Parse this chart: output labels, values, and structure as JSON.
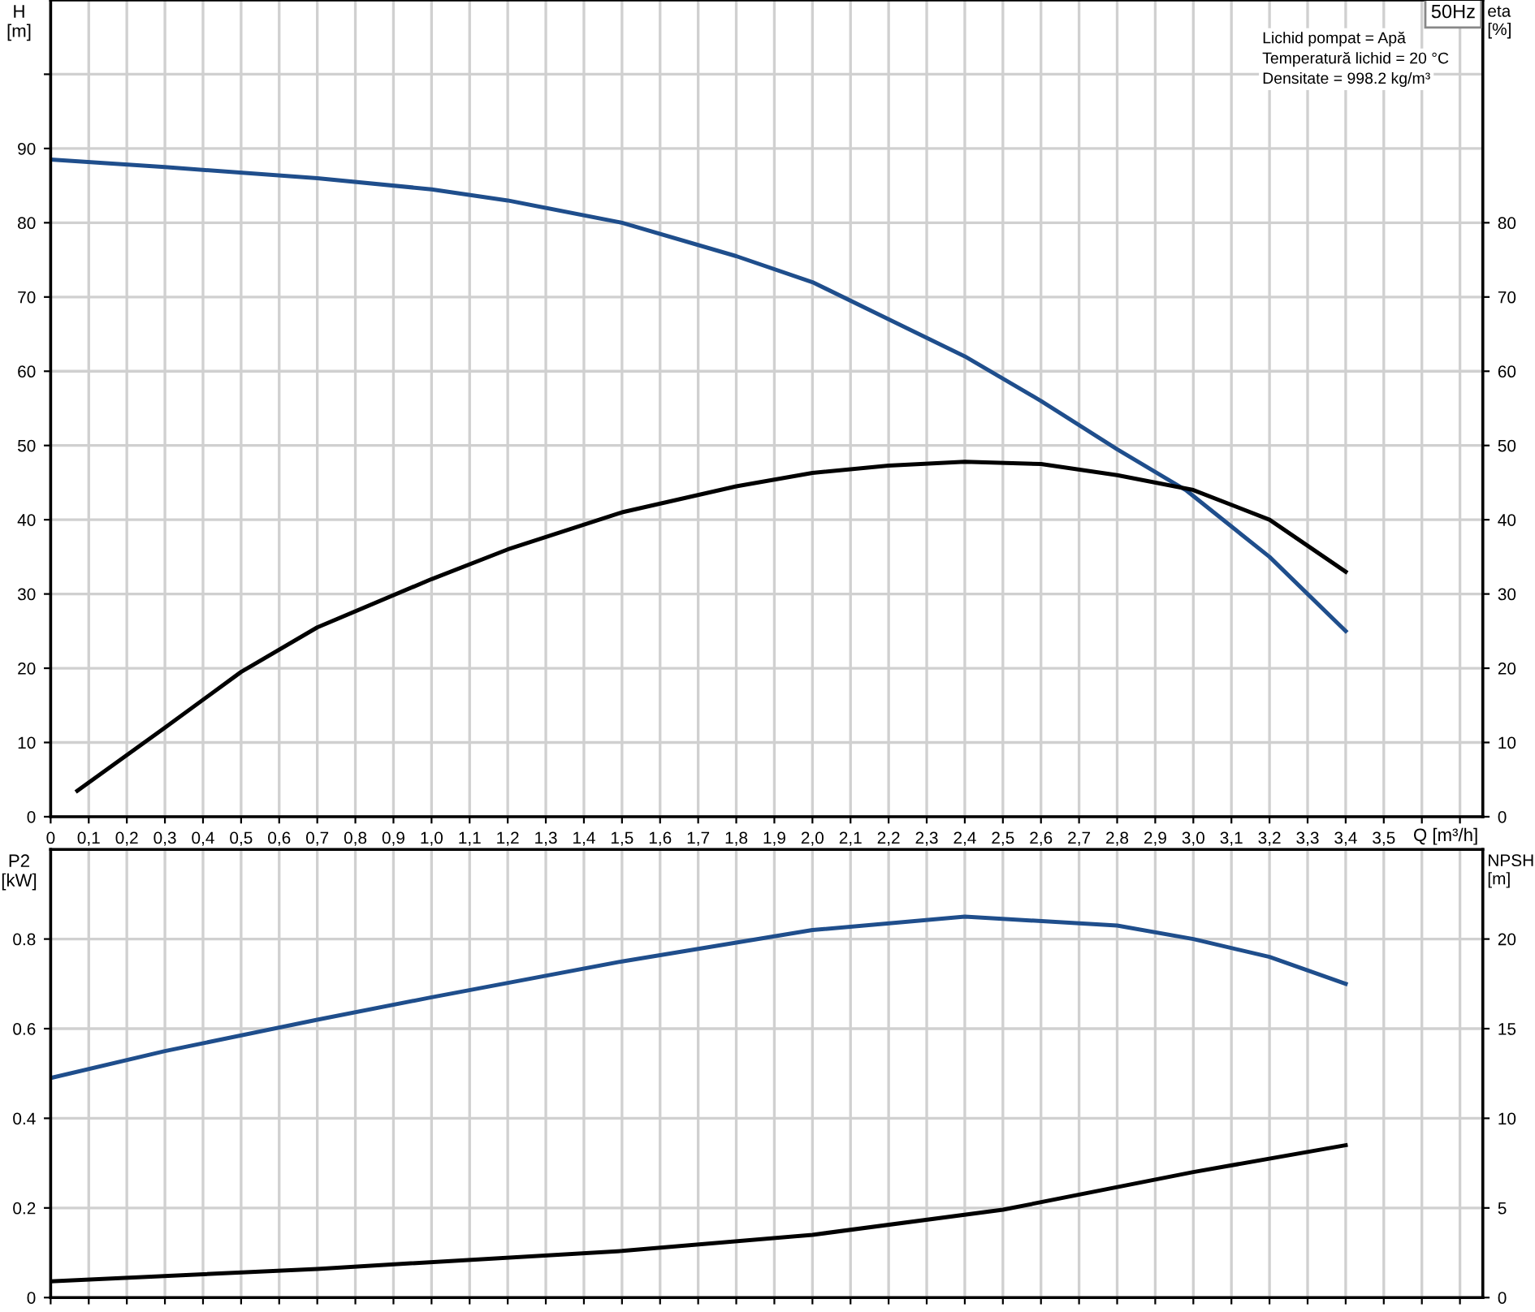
{
  "chart_data": [
    {
      "type": "line",
      "title": "50Hz",
      "xlabel": "Q [m³/h]",
      "ylabel": "H\n[m]",
      "y2label": "eta\n[%]",
      "xlim": [
        0,
        3.76
      ],
      "xticks": [
        {
          "value": 0,
          "label": "0"
        },
        {
          "value": 0.1,
          "label": "0,1"
        },
        {
          "value": 0.2,
          "label": "0,2"
        },
        {
          "value": 0.3,
          "label": "0,3"
        },
        {
          "value": 0.4,
          "label": "0,4"
        },
        {
          "value": 0.5,
          "label": "0,5"
        },
        {
          "value": 0.6,
          "label": "0,6"
        },
        {
          "value": 0.7,
          "label": "0,7"
        },
        {
          "value": 0.8,
          "label": "0,8"
        },
        {
          "value": 0.9,
          "label": "0,9"
        },
        {
          "value": 1.0,
          "label": "1,0"
        },
        {
          "value": 1.1,
          "label": "1,1"
        },
        {
          "value": 1.2,
          "label": "1,2"
        },
        {
          "value": 1.3,
          "label": "1,3"
        },
        {
          "value": 1.4,
          "label": "1,4"
        },
        {
          "value": 1.5,
          "label": "1,5"
        },
        {
          "value": 1.6,
          "label": "1,6"
        },
        {
          "value": 1.7,
          "label": "1,7"
        },
        {
          "value": 1.8,
          "label": "1,8"
        },
        {
          "value": 1.9,
          "label": "1,9"
        },
        {
          "value": 2.0,
          "label": "2,0"
        },
        {
          "value": 2.1,
          "label": "2,1"
        },
        {
          "value": 2.2,
          "label": "2,2"
        },
        {
          "value": 2.3,
          "label": "2,3"
        },
        {
          "value": 2.4,
          "label": "2,4"
        },
        {
          "value": 2.5,
          "label": "2,5"
        },
        {
          "value": 2.6,
          "label": "2,6"
        },
        {
          "value": 2.7,
          "label": "2,7"
        },
        {
          "value": 2.8,
          "label": "2,8"
        },
        {
          "value": 2.9,
          "label": "2,9"
        },
        {
          "value": 3.0,
          "label": "3,0"
        },
        {
          "value": 3.1,
          "label": "3,1"
        },
        {
          "value": 3.2,
          "label": "3,2"
        },
        {
          "value": 3.3,
          "label": "3,3"
        },
        {
          "value": 3.4,
          "label": "3,4"
        },
        {
          "value": 3.5,
          "label": "3,5"
        },
        {
          "value": 3.6,
          "label": null
        },
        {
          "value": 3.7,
          "label": null
        }
      ],
      "ylim": [
        0,
        110
      ],
      "yticks": [
        0,
        10,
        20,
        30,
        40,
        50,
        60,
        70,
        80,
        90,
        {
          "value": 100,
          "label": null
        }
      ],
      "y2lim": [
        0,
        110
      ],
      "y2ticks": [
        0,
        10,
        20,
        30,
        40,
        50,
        60,
        70,
        80
      ],
      "grid": true,
      "legend": false,
      "line_style": "solid",
      "marker": "none",
      "annotations": [
        "Lichid pompat = Apă",
        "Temperatură lichid = 20 °C",
        "Densitate = 998.2 kg/m³"
      ],
      "series": [
        {
          "color": "#1f4e8c",
          "x": [
            0,
            0.3,
            0.7,
            1.0,
            1.2,
            1.5,
            1.8,
            2.0,
            2.2,
            2.4,
            2.6,
            2.8,
            2.98,
            3.2,
            3.4
          ],
          "values": [
            88.5,
            87.5,
            86,
            84.5,
            83,
            80,
            75.5,
            72,
            67,
            62,
            56,
            49.5,
            44,
            35,
            25
          ]
        },
        {
          "color": "#000000",
          "axis": "y2",
          "x": [
            0.07,
            0.3,
            0.5,
            0.7,
            1.0,
            1.2,
            1.5,
            1.8,
            2.0,
            2.2,
            2.4,
            2.6,
            2.8,
            3.0,
            3.2,
            3.4
          ],
          "values": [
            3.5,
            12,
            19.5,
            25.5,
            32,
            36,
            41,
            44.5,
            46.3,
            47.3,
            47.8,
            47.5,
            46,
            44,
            40,
            33
          ]
        }
      ]
    },
    {
      "type": "line",
      "ylabel": "P2\n[kW]",
      "y2label": "NPSH\n[m]",
      "xlim": [
        0,
        3.76
      ],
      "xticks": [
        {
          "value": 0,
          "label": null
        },
        {
          "value": 0.1,
          "label": null
        },
        {
          "value": 0.2,
          "label": null
        },
        {
          "value": 0.3,
          "label": null
        },
        {
          "value": 0.4,
          "label": null
        },
        {
          "value": 0.5,
          "label": null
        },
        {
          "value": 0.6,
          "label": null
        },
        {
          "value": 0.7,
          "label": null
        },
        {
          "value": 0.8,
          "label": null
        },
        {
          "value": 0.9,
          "label": null
        },
        {
          "value": 1.0,
          "label": null
        },
        {
          "value": 1.1,
          "label": null
        },
        {
          "value": 1.2,
          "label": null
        },
        {
          "value": 1.3,
          "label": null
        },
        {
          "value": 1.4,
          "label": null
        },
        {
          "value": 1.5,
          "label": null
        },
        {
          "value": 1.6,
          "label": null
        },
        {
          "value": 1.7,
          "label": null
        },
        {
          "value": 1.8,
          "label": null
        },
        {
          "value": 1.9,
          "label": null
        },
        {
          "value": 2.0,
          "label": null
        },
        {
          "value": 2.1,
          "label": null
        },
        {
          "value": 2.2,
          "label": null
        },
        {
          "value": 2.3,
          "label": null
        },
        {
          "value": 2.4,
          "label": null
        },
        {
          "value": 2.5,
          "label": null
        },
        {
          "value": 2.6,
          "label": null
        },
        {
          "value": 2.7,
          "label": null
        },
        {
          "value": 2.8,
          "label": null
        },
        {
          "value": 2.9,
          "label": null
        },
        {
          "value": 3.0,
          "label": null
        },
        {
          "value": 3.1,
          "label": null
        },
        {
          "value": 3.2,
          "label": null
        },
        {
          "value": 3.3,
          "label": null
        },
        {
          "value": 3.4,
          "label": null
        },
        {
          "value": 3.5,
          "label": null
        },
        {
          "value": 3.6,
          "label": null
        },
        {
          "value": 3.7,
          "label": null
        }
      ],
      "tick_labels": "y",
      "ylim": [
        0,
        1.0
      ],
      "yticks": [
        0,
        0.2,
        0.4,
        0.6,
        0.8
      ],
      "y2lim": [
        0,
        25
      ],
      "y2ticks": [
        0,
        5,
        10,
        15,
        20
      ],
      "grid": true,
      "legend": false,
      "line_style": "solid",
      "marker": "none",
      "series": [
        {
          "color": "#1f4e8c",
          "x": [
            0,
            0.3,
            0.7,
            1.0,
            1.5,
            2.0,
            2.4,
            2.8,
            3.0,
            3.2,
            3.4
          ],
          "values": [
            0.49,
            0.55,
            0.62,
            0.67,
            0.75,
            0.82,
            0.85,
            0.83,
            0.8,
            0.76,
            0.7
          ]
        },
        {
          "color": "#000000",
          "axis": "y2",
          "x": [
            0,
            0.7,
            1.5,
            2.0,
            2.5,
            3.0,
            3.4
          ],
          "values": [
            0.9,
            1.6,
            2.6,
            3.5,
            4.9,
            7.0,
            8.5
          ]
        }
      ]
    }
  ]
}
